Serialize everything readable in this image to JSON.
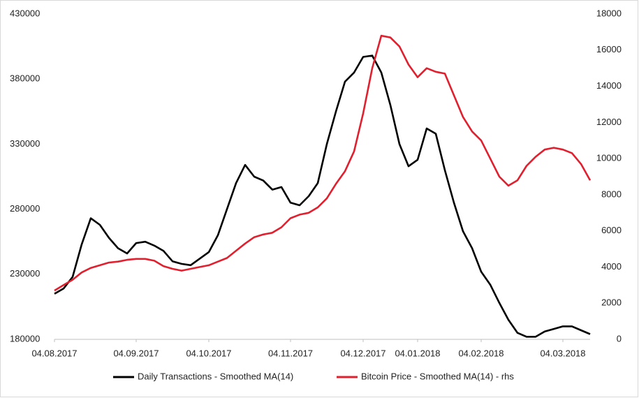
{
  "chart_data": {
    "type": "line",
    "categories": [
      "04.08.2017",
      null,
      null,
      null,
      null,
      null,
      null,
      null,
      null,
      "04.09.2017",
      null,
      null,
      null,
      null,
      null,
      null,
      null,
      "04.10.2017",
      null,
      null,
      null,
      null,
      null,
      null,
      null,
      null,
      "04.11.2017",
      null,
      null,
      null,
      null,
      null,
      null,
      null,
      "04.12.2017",
      null,
      null,
      null,
      null,
      null,
      "04.01.2018",
      null,
      null,
      null,
      null,
      null,
      null,
      "04.02.2018",
      null,
      null,
      null,
      null,
      null,
      null,
      null,
      null,
      "04.03.2018",
      null,
      null,
      null
    ],
    "series": [
      {
        "name": "Daily Transactions - Smoothed MA(14)",
        "color": "#000000",
        "values": [
          215000,
          219000,
          228000,
          253000,
          273000,
          268000,
          258000,
          250000,
          246000,
          254000,
          255000,
          252000,
          248000,
          240000,
          238000,
          237000,
          242000,
          247000,
          260000,
          280000,
          300000,
          314000,
          305000,
          302000,
          295000,
          297000,
          285000,
          283000,
          290000,
          300000,
          330000,
          355000,
          378000,
          385000,
          397000,
          398000,
          385000,
          360000,
          330000,
          313000,
          318000,
          342000,
          338000,
          310000,
          285000,
          263000,
          250000,
          232000,
          222000,
          208000,
          195000,
          185000,
          182000,
          182000,
          186000,
          188000,
          190000,
          190000,
          187000,
          184000
        ]
      },
      {
        "name": "Bitcoin Price - Smoothed MA(14) - rhs",
        "color": "#e0202e",
        "axis": "y2",
        "values": [
          2700,
          3000,
          3300,
          3700,
          3950,
          4100,
          4250,
          4300,
          4400,
          4450,
          4450,
          4350,
          4050,
          3900,
          3800,
          3900,
          4000,
          4100,
          4300,
          4500,
          4900,
          5300,
          5650,
          5800,
          5900,
          6200,
          6700,
          6900,
          7000,
          7300,
          7800,
          8600,
          9300,
          10400,
          12500,
          15000,
          16800,
          16700,
          16200,
          15200,
          14500,
          15000,
          14800,
          14700,
          13500,
          12300,
          11500,
          11000,
          10000,
          9000,
          8500,
          8800,
          9600,
          10100,
          10500,
          10600,
          10500,
          10300,
          9700,
          8800
        ]
      }
    ],
    "ylim": [
      180000,
      430000
    ],
    "yticks": [
      180000,
      230000,
      280000,
      330000,
      380000,
      430000
    ],
    "y2lim": [
      0,
      18000
    ],
    "y2ticks": [
      0,
      2000,
      4000,
      6000,
      8000,
      10000,
      12000,
      14000,
      16000,
      18000
    ],
    "grid": false,
    "legend": "bottom"
  }
}
